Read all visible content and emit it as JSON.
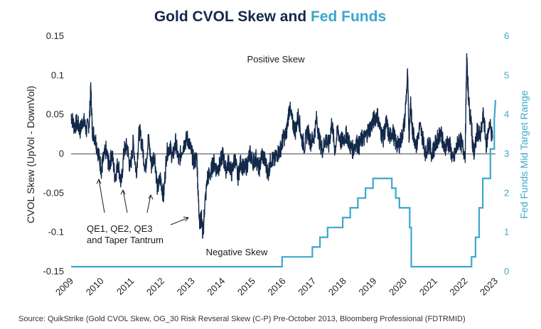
{
  "chart_data": {
    "type": "line",
    "title_part1": "Gold CVOL Skew and ",
    "title_part2": "Fed Funds",
    "ylabel": "CVOL Skew (UpVol - DownVol)",
    "y2label": "Fed Funds Mid Target Range",
    "xlim": [
      2009,
      2023
    ],
    "ylim": [
      -0.15,
      0.15
    ],
    "y2lim": [
      0,
      6
    ],
    "x_ticks": [
      "2009",
      "2010",
      "2011",
      "2012",
      "2013",
      "2014",
      "2015",
      "2016",
      "2017",
      "2018",
      "2019",
      "2020",
      "2021",
      "2022",
      "2023"
    ],
    "y_ticks": [
      "0.15",
      "0.1",
      "0.05",
      "0",
      "-0.05",
      "-0.1",
      "-0.15"
    ],
    "y2_ticks": [
      "6",
      "5",
      "4",
      "3",
      "2",
      "1",
      "0"
    ],
    "colors": {
      "skew": "#13294b",
      "fedfunds": "#3ba7cc",
      "zero_line": "#666666",
      "title": "#13294b"
    },
    "series": [
      {
        "name": "Gold CVOL Skew",
        "axis": "left",
        "x": [
          2009.0,
          2009.1,
          2009.2,
          2009.3,
          2009.4,
          2009.5,
          2009.6,
          2009.65,
          2009.7,
          2009.8,
          2009.9,
          2010.0,
          2010.05,
          2010.15,
          2010.25,
          2010.35,
          2010.45,
          2010.55,
          2010.65,
          2010.75,
          2010.85,
          2010.95,
          2011.05,
          2011.15,
          2011.25,
          2011.35,
          2011.45,
          2011.55,
          2011.65,
          2011.75,
          2011.85,
          2011.95,
          2012.05,
          2012.15,
          2012.25,
          2012.35,
          2012.45,
          2012.55,
          2012.65,
          2012.75,
          2012.85,
          2012.95,
          2013.05,
          2013.15,
          2013.2,
          2013.25,
          2013.3,
          2013.35,
          2013.4,
          2013.5,
          2013.6,
          2013.7,
          2013.8,
          2013.9,
          2014.0,
          2014.1,
          2014.2,
          2014.3,
          2014.4,
          2014.5,
          2014.6,
          2014.7,
          2014.8,
          2014.9,
          2015.0,
          2015.1,
          2015.2,
          2015.3,
          2015.4,
          2015.5,
          2015.6,
          2015.7,
          2015.8,
          2015.9,
          2016.0,
          2016.1,
          2016.2,
          2016.3,
          2016.4,
          2016.5,
          2016.6,
          2016.7,
          2016.8,
          2016.9,
          2017.0,
          2017.1,
          2017.2,
          2017.3,
          2017.4,
          2017.5,
          2017.6,
          2017.7,
          2017.8,
          2017.9,
          2018.0,
          2018.1,
          2018.2,
          2018.3,
          2018.4,
          2018.5,
          2018.6,
          2018.7,
          2018.8,
          2018.9,
          2019.0,
          2019.1,
          2019.2,
          2019.3,
          2019.4,
          2019.5,
          2019.6,
          2019.7,
          2019.8,
          2019.9,
          2020.0,
          2020.1,
          2020.15,
          2020.2,
          2020.25,
          2020.3,
          2020.4,
          2020.5,
          2020.6,
          2020.7,
          2020.8,
          2020.9,
          2021.0,
          2021.1,
          2021.2,
          2021.3,
          2021.4,
          2021.5,
          2021.6,
          2021.7,
          2021.8,
          2021.9,
          2022.0,
          2022.05,
          2022.1,
          2022.15,
          2022.2,
          2022.25,
          2022.3,
          2022.4,
          2022.5,
          2022.6,
          2022.7,
          2022.8,
          2022.9
        ],
        "values": [
          0.05,
          0.035,
          0.04,
          0.03,
          0.045,
          0.03,
          0.04,
          0.085,
          0.03,
          0.02,
          0.0,
          -0.02,
          -0.01,
          0.005,
          -0.015,
          0.0,
          -0.03,
          -0.01,
          -0.04,
          0.005,
          0.01,
          -0.02,
          0.015,
          -0.025,
          0.03,
          0.01,
          -0.02,
          0.02,
          -0.015,
          0.0,
          -0.045,
          -0.03,
          -0.055,
          0.0,
          0.01,
          -0.005,
          0.015,
          -0.01,
          0.005,
          0.015,
          0.02,
          0.005,
          -0.01,
          -0.005,
          -0.06,
          -0.09,
          -0.08,
          -0.105,
          -0.07,
          -0.03,
          -0.025,
          -0.01,
          -0.02,
          -0.015,
          0.0,
          -0.02,
          -0.01,
          -0.025,
          -0.005,
          -0.03,
          -0.01,
          -0.02,
          -0.015,
          0.0,
          -0.01,
          -0.005,
          -0.02,
          0.0,
          -0.01,
          -0.025,
          -0.005,
          -0.01,
          0.0,
          0.005,
          0.02,
          0.025,
          0.06,
          0.04,
          0.03,
          0.05,
          0.02,
          0.01,
          0.03,
          0.015,
          0.02,
          0.045,
          0.015,
          0.005,
          0.02,
          0.01,
          0.04,
          0.005,
          0.03,
          0.015,
          0.02,
          0.025,
          0.01,
          0.005,
          0.015,
          0.01,
          0.02,
          0.02,
          0.03,
          0.035,
          0.045,
          0.05,
          0.03,
          0.02,
          0.04,
          0.02,
          0.03,
          0.015,
          0.01,
          0.02,
          0.04,
          0.1,
          0.02,
          0.07,
          0.03,
          0.025,
          0.01,
          0.035,
          0.02,
          0.0,
          0.015,
          0.0,
          0.01,
          0.02,
          0.03,
          0.005,
          0.015,
          0.01,
          -0.01,
          0.005,
          0.02,
          0.01,
          0.0,
          0.12,
          0.08,
          0.05,
          0.04,
          0.01,
          0.0,
          0.03,
          0.02,
          0.05,
          0.01,
          0.04,
          0.02
        ]
      },
      {
        "name": "Fed Funds Mid Target Range",
        "axis": "right",
        "x": [
          2009.0,
          2015.96,
          2015.96,
          2016.96,
          2016.96,
          2017.21,
          2017.21,
          2017.46,
          2017.46,
          2017.96,
          2017.96,
          2018.21,
          2018.21,
          2018.46,
          2018.46,
          2018.71,
          2018.71,
          2018.96,
          2018.96,
          2019.58,
          2019.58,
          2019.71,
          2019.71,
          2019.83,
          2019.83,
          2020.17,
          2020.17,
          2020.22,
          2020.22,
          2022.21,
          2022.21,
          2022.34,
          2022.34,
          2022.46,
          2022.46,
          2022.58,
          2022.58,
          2022.83,
          2022.83,
          2022.96,
          2022.96,
          2023.0
        ],
        "values": [
          0.125,
          0.125,
          0.375,
          0.375,
          0.625,
          0.625,
          0.875,
          0.875,
          1.125,
          1.125,
          1.375,
          1.375,
          1.625,
          1.625,
          1.875,
          1.875,
          2.125,
          2.125,
          2.375,
          2.375,
          2.125,
          2.125,
          1.875,
          1.875,
          1.625,
          1.625,
          1.125,
          1.125,
          0.125,
          0.125,
          0.375,
          0.375,
          0.875,
          0.875,
          1.625,
          1.625,
          2.375,
          2.375,
          3.125,
          3.125,
          3.875,
          4.375
        ]
      }
    ],
    "annotations": [
      {
        "name": "positive-skew-label",
        "text": "Positive Skew"
      },
      {
        "name": "negative-skew-label",
        "text": "Negative Skew"
      },
      {
        "name": "qe-label-line1",
        "text": "QE1, QE2, QE3"
      },
      {
        "name": "qe-label-line2",
        "text": "and Taper Tantrum"
      }
    ]
  },
  "source": "Source: QuikStrike (Gold CVOL Skew, OG_30 Risk Revseral Skew (C-P) Pre-October 2013, Bloomberg Professional (FDTRMID)"
}
